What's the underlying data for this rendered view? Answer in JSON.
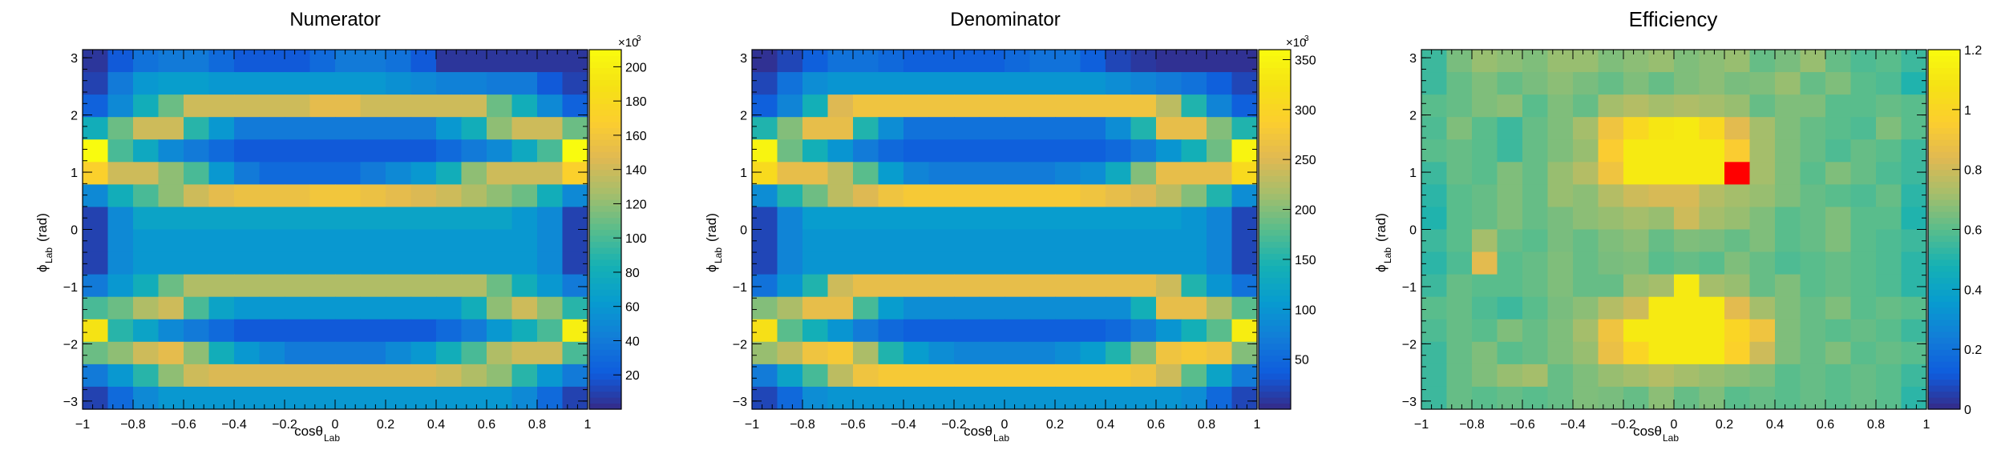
{
  "chart_data": [
    {
      "type": "heatmap",
      "title": "Numerator",
      "xlabel": "cosθ",
      "xlabel_sub": "Lab",
      "ylabel": "ϕ",
      "ylabel_sub": "Lab",
      "ylabel_unit": "(rad)",
      "xlim": [
        -1,
        1
      ],
      "ylim": [
        -3.1416,
        3.1416
      ],
      "x_ticks": [
        "−1",
        "−0.8",
        "−0.6",
        "−0.4",
        "−0.2",
        "0",
        "0.2",
        "0.4",
        "0.6",
        "0.8",
        "1"
      ],
      "y_ticks": [
        "−3",
        "−2",
        "−1",
        "0",
        "1",
        "2",
        "3"
      ],
      "color_range": [
        0,
        210
      ],
      "colorbar_ticks": [
        "20",
        "40",
        "60",
        "80",
        "100",
        "120",
        "140",
        "160",
        "180",
        "200"
      ],
      "colorbar_multiplier": "×10",
      "colorbar_exponent": "3",
      "row_order": "top-to-bottom (phi from +3.14 to -3.14)",
      "values": [
        [
          5,
          20,
          35,
          40,
          40,
          30,
          20,
          20,
          20,
          30,
          40,
          40,
          35,
          20,
          5,
          5,
          5,
          5,
          5,
          5
        ],
        [
          10,
          40,
          60,
          65,
          65,
          60,
          60,
          60,
          60,
          60,
          60,
          60,
          55,
          50,
          45,
          45,
          40,
          40,
          20,
          10
        ],
        [
          25,
          50,
          80,
          110,
          140,
          140,
          140,
          140,
          140,
          150,
          150,
          140,
          140,
          140,
          140,
          140,
          110,
          80,
          50,
          25
        ],
        [
          80,
          110,
          140,
          140,
          90,
          60,
          40,
          40,
          40,
          40,
          40,
          40,
          40,
          40,
          60,
          80,
          120,
          140,
          140,
          110
        ],
        [
          210,
          100,
          75,
          50,
          40,
          30,
          20,
          20,
          20,
          20,
          20,
          20,
          20,
          20,
          30,
          40,
          50,
          75,
          100,
          210
        ],
        [
          170,
          140,
          140,
          120,
          100,
          60,
          40,
          30,
          30,
          30,
          30,
          40,
          50,
          60,
          80,
          120,
          140,
          140,
          140,
          170
        ],
        [
          50,
          80,
          100,
          120,
          140,
          150,
          155,
          155,
          155,
          160,
          160,
          155,
          150,
          145,
          140,
          130,
          120,
          110,
          80,
          50
        ],
        [
          10,
          50,
          70,
          70,
          70,
          70,
          70,
          70,
          70,
          70,
          70,
          70,
          70,
          70,
          70,
          70,
          70,
          60,
          50,
          10
        ],
        [
          10,
          50,
          60,
          60,
          60,
          60,
          60,
          60,
          60,
          60,
          60,
          60,
          60,
          60,
          60,
          60,
          60,
          60,
          50,
          10
        ],
        [
          10,
          50,
          60,
          60,
          60,
          60,
          60,
          60,
          60,
          60,
          60,
          60,
          60,
          60,
          60,
          60,
          60,
          60,
          50,
          10
        ],
        [
          40,
          60,
          80,
          110,
          130,
          130,
          130,
          130,
          130,
          130,
          130,
          130,
          130,
          130,
          130,
          130,
          110,
          80,
          60,
          40
        ],
        [
          100,
          110,
          130,
          140,
          100,
          70,
          60,
          60,
          60,
          60,
          60,
          60,
          60,
          60,
          60,
          80,
          120,
          140,
          120,
          90
        ],
        [
          190,
          90,
          70,
          50,
          40,
          30,
          20,
          20,
          20,
          20,
          20,
          20,
          20,
          20,
          30,
          40,
          60,
          80,
          100,
          200
        ],
        [
          110,
          120,
          140,
          150,
          120,
          80,
          60,
          50,
          40,
          40,
          40,
          40,
          50,
          60,
          80,
          100,
          130,
          140,
          140,
          100
        ],
        [
          40,
          60,
          90,
          120,
          140,
          145,
          145,
          145,
          145,
          145,
          145,
          145,
          145,
          145,
          140,
          130,
          120,
          90,
          60,
          40
        ],
        [
          10,
          30,
          50,
          60,
          60,
          60,
          60,
          60,
          60,
          60,
          60,
          60,
          60,
          60,
          60,
          60,
          60,
          50,
          30,
          10
        ]
      ]
    },
    {
      "type": "heatmap",
      "title": "Denominator",
      "xlabel": "cosθ",
      "xlabel_sub": "Lab",
      "ylabel": "ϕ",
      "ylabel_sub": "Lab",
      "ylabel_unit": "(rad)",
      "xlim": [
        -1,
        1
      ],
      "ylim": [
        -3.1416,
        3.1416
      ],
      "x_ticks": [
        "−1",
        "−0.8",
        "−0.6",
        "−0.4",
        "−0.2",
        "0",
        "0.2",
        "0.4",
        "0.6",
        "0.8",
        "1"
      ],
      "y_ticks": [
        "−3",
        "−2",
        "−1",
        "0",
        "1",
        "2",
        "3"
      ],
      "color_range": [
        0,
        360
      ],
      "colorbar_ticks": [
        "50",
        "100",
        "150",
        "200",
        "250",
        "300",
        "350"
      ],
      "colorbar_multiplier": "×10",
      "colorbar_exponent": "3",
      "row_order": "top-to-bottom (phi from +3.14 to -3.14)",
      "values": [
        [
          5,
          20,
          40,
          60,
          60,
          50,
          40,
          40,
          40,
          40,
          50,
          60,
          60,
          40,
          20,
          10,
          5,
          5,
          5,
          5
        ],
        [
          20,
          60,
          90,
          100,
          100,
          100,
          100,
          100,
          100,
          100,
          100,
          100,
          100,
          100,
          90,
          80,
          70,
          60,
          40,
          20
        ],
        [
          40,
          80,
          140,
          250,
          270,
          270,
          270,
          270,
          270,
          270,
          270,
          270,
          270,
          270,
          270,
          270,
          230,
          150,
          80,
          40
        ],
        [
          150,
          200,
          260,
          260,
          150,
          90,
          60,
          60,
          60,
          60,
          60,
          60,
          60,
          60,
          90,
          150,
          260,
          260,
          200,
          150
        ],
        [
          350,
          190,
          140,
          100,
          70,
          50,
          40,
          40,
          40,
          40,
          40,
          40,
          40,
          40,
          50,
          70,
          100,
          140,
          190,
          350
        ],
        [
          310,
          260,
          260,
          230,
          180,
          110,
          80,
          70,
          70,
          70,
          70,
          70,
          80,
          90,
          130,
          200,
          260,
          260,
          260,
          310
        ],
        [
          90,
          150,
          190,
          230,
          250,
          270,
          280,
          280,
          280,
          280,
          280,
          280,
          280,
          270,
          260,
          250,
          230,
          200,
          150,
          90
        ],
        [
          20,
          80,
          110,
          110,
          110,
          110,
          110,
          110,
          110,
          110,
          110,
          110,
          110,
          110,
          110,
          110,
          110,
          100,
          80,
          20
        ],
        [
          20,
          80,
          100,
          100,
          100,
          100,
          100,
          100,
          100,
          100,
          100,
          100,
          100,
          100,
          100,
          100,
          100,
          100,
          80,
          20
        ],
        [
          20,
          80,
          100,
          100,
          100,
          100,
          100,
          100,
          100,
          100,
          100,
          100,
          100,
          100,
          100,
          100,
          100,
          100,
          80,
          20
        ],
        [
          60,
          100,
          150,
          240,
          260,
          260,
          260,
          260,
          260,
          260,
          260,
          260,
          260,
          260,
          260,
          260,
          240,
          150,
          100,
          60
        ],
        [
          200,
          220,
          260,
          260,
          170,
          110,
          90,
          90,
          90,
          90,
          90,
          90,
          90,
          90,
          90,
          140,
          260,
          260,
          220,
          180
        ],
        [
          320,
          180,
          140,
          100,
          70,
          50,
          40,
          40,
          40,
          40,
          40,
          40,
          40,
          40,
          50,
          70,
          100,
          140,
          180,
          340
        ],
        [
          210,
          230,
          270,
          280,
          220,
          150,
          110,
          90,
          80,
          80,
          80,
          80,
          90,
          110,
          150,
          200,
          270,
          280,
          270,
          200
        ],
        [
          70,
          120,
          170,
          230,
          270,
          280,
          280,
          280,
          280,
          280,
          280,
          280,
          280,
          280,
          280,
          270,
          240,
          180,
          120,
          70
        ],
        [
          20,
          50,
          90,
          100,
          100,
          100,
          100,
          100,
          100,
          100,
          100,
          100,
          100,
          100,
          100,
          100,
          100,
          90,
          50,
          20
        ]
      ]
    },
    {
      "type": "heatmap",
      "title": "Efficiency",
      "xlabel": "cosθ",
      "xlabel_sub": "Lab",
      "ylabel": "ϕ",
      "ylabel_sub": "Lab",
      "ylabel_unit": "(rad)",
      "xlim": [
        -1,
        1
      ],
      "ylim": [
        -3.1416,
        3.1416
      ],
      "x_ticks": [
        "−1",
        "−0.8",
        "−0.6",
        "−0.4",
        "−0.2",
        "0",
        "0.2",
        "0.4",
        "0.6",
        "0.8",
        "1"
      ],
      "y_ticks": [
        "−3",
        "−2",
        "−1",
        "0",
        "1",
        "2",
        "3"
      ],
      "color_range": [
        0,
        1.2
      ],
      "colorbar_ticks": [
        "0",
        "0.2",
        "0.4",
        "0.6",
        "0.8",
        "1",
        "1.2"
      ],
      "colorbar_ticks_values": [
        0,
        0.2,
        0.4,
        0.6,
        0.8,
        1,
        1.2
      ],
      "overflow_color": "#ff0000",
      "row_order": "top-to-bottom (phi from +3.14 to -3.14)",
      "values": [
        [
          0.55,
          0.65,
          0.7,
          0.68,
          0.66,
          0.7,
          0.7,
          0.66,
          0.68,
          0.7,
          0.66,
          0.68,
          0.7,
          0.62,
          0.65,
          0.7,
          0.62,
          0.58,
          0.6,
          0.55
        ],
        [
          0.55,
          0.62,
          0.66,
          0.62,
          0.65,
          0.68,
          0.65,
          0.62,
          0.66,
          0.62,
          0.66,
          0.68,
          0.65,
          0.66,
          0.7,
          0.62,
          0.66,
          0.6,
          0.58,
          0.5
        ],
        [
          0.6,
          0.62,
          0.66,
          0.68,
          0.6,
          0.66,
          0.62,
          0.72,
          0.75,
          0.72,
          0.74,
          0.72,
          0.7,
          0.62,
          0.66,
          0.66,
          0.6,
          0.6,
          0.62,
          0.6
        ],
        [
          0.58,
          0.66,
          0.6,
          0.55,
          0.62,
          0.66,
          0.72,
          0.9,
          1.02,
          1.1,
          1.12,
          1.02,
          0.85,
          0.72,
          0.66,
          0.62,
          0.6,
          0.58,
          0.66,
          0.6
        ],
        [
          0.6,
          0.62,
          0.6,
          0.55,
          0.62,
          0.66,
          0.7,
          0.95,
          1.12,
          1.12,
          1.12,
          1.12,
          0.95,
          0.72,
          0.66,
          0.62,
          0.58,
          0.62,
          0.6,
          0.55
        ],
        [
          0.55,
          0.62,
          0.6,
          0.66,
          0.62,
          0.7,
          0.75,
          0.9,
          1.12,
          1.12,
          1.12,
          1.12,
          1.3,
          0.72,
          0.66,
          0.6,
          0.66,
          0.62,
          0.58,
          0.55
        ],
        [
          0.52,
          0.6,
          0.62,
          0.66,
          0.62,
          0.7,
          0.68,
          0.75,
          0.8,
          0.82,
          0.82,
          0.75,
          0.72,
          0.7,
          0.66,
          0.62,
          0.6,
          0.58,
          0.62,
          0.52
        ],
        [
          0.5,
          0.6,
          0.62,
          0.66,
          0.62,
          0.65,
          0.68,
          0.7,
          0.72,
          0.7,
          0.8,
          0.72,
          0.7,
          0.66,
          0.6,
          0.62,
          0.66,
          0.6,
          0.6,
          0.5
        ],
        [
          0.55,
          0.6,
          0.72,
          0.62,
          0.6,
          0.65,
          0.62,
          0.66,
          0.68,
          0.62,
          0.66,
          0.65,
          0.62,
          0.66,
          0.6,
          0.62,
          0.66,
          0.6,
          0.58,
          0.55
        ],
        [
          0.52,
          0.58,
          0.85,
          0.6,
          0.62,
          0.66,
          0.62,
          0.65,
          0.66,
          0.6,
          0.62,
          0.6,
          0.66,
          0.62,
          0.58,
          0.6,
          0.62,
          0.6,
          0.58,
          0.52
        ],
        [
          0.55,
          0.62,
          0.6,
          0.6,
          0.62,
          0.66,
          0.62,
          0.62,
          0.7,
          0.72,
          1.12,
          0.72,
          0.7,
          0.62,
          0.66,
          0.6,
          0.62,
          0.6,
          0.58,
          0.52
        ],
        [
          0.6,
          0.62,
          0.58,
          0.55,
          0.6,
          0.65,
          0.68,
          0.75,
          0.8,
          1.12,
          1.12,
          1.12,
          0.85,
          0.72,
          0.66,
          0.62,
          0.66,
          0.6,
          0.62,
          0.6
        ],
        [
          0.58,
          0.62,
          0.6,
          0.66,
          0.62,
          0.66,
          0.72,
          0.9,
          1.12,
          1.12,
          1.12,
          1.12,
          1.0,
          0.9,
          0.66,
          0.62,
          0.6,
          0.62,
          0.6,
          0.55
        ],
        [
          0.55,
          0.62,
          0.66,
          0.6,
          0.62,
          0.66,
          0.7,
          0.88,
          1.0,
          1.12,
          1.12,
          1.12,
          0.98,
          0.8,
          0.66,
          0.62,
          0.66,
          0.6,
          0.62,
          0.6
        ],
        [
          0.55,
          0.62,
          0.66,
          0.7,
          0.72,
          0.62,
          0.66,
          0.7,
          0.72,
          0.75,
          0.72,
          0.7,
          0.68,
          0.66,
          0.6,
          0.62,
          0.6,
          0.62,
          0.6,
          0.55
        ],
        [
          0.55,
          0.62,
          0.6,
          0.62,
          0.6,
          0.62,
          0.66,
          0.65,
          0.62,
          0.68,
          0.62,
          0.66,
          0.6,
          0.62,
          0.6,
          0.62,
          0.6,
          0.62,
          0.6,
          0.52
        ]
      ]
    }
  ]
}
